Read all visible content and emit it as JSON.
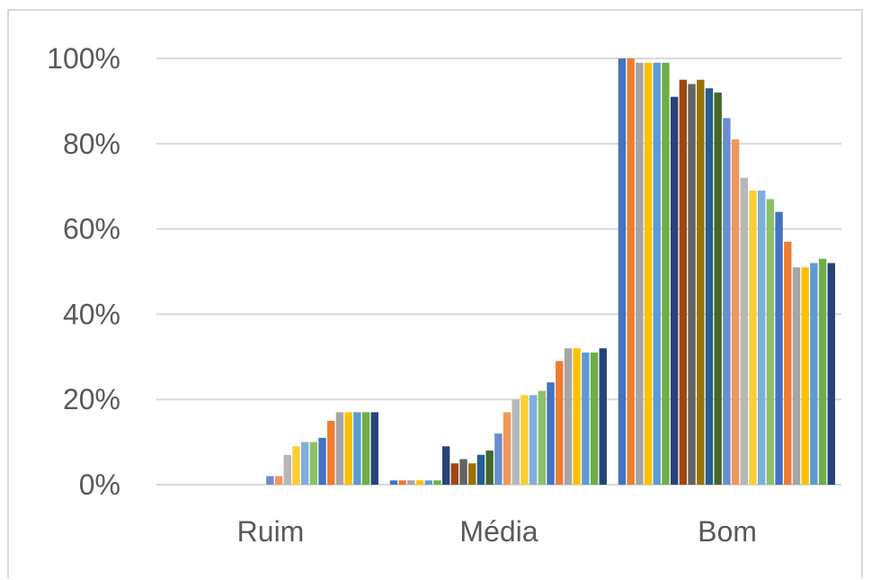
{
  "chart_data": {
    "type": "bar",
    "categories": [
      "Ruim",
      "Média",
      "Bom"
    ],
    "y_tick_labels": [
      "0%",
      "20%",
      "40%",
      "60%",
      "80%",
      "100%"
    ],
    "ylim": [
      0,
      100
    ],
    "grid": true,
    "legend": "none",
    "palette": [
      "#4472c4",
      "#ed7d31",
      "#a5a5a5",
      "#ffc000",
      "#5b9bd5",
      "#70ad47",
      "#264478",
      "#9e480e",
      "#636363",
      "#997300",
      "#255e91",
      "#43682b",
      "#698ed0",
      "#f1975a",
      "#b7b7b7",
      "#ffcd33",
      "#7cafdd",
      "#8cc168"
    ],
    "series_values": [
      [
        0,
        1,
        100
      ],
      [
        0,
        1,
        100
      ],
      [
        0,
        1,
        99
      ],
      [
        0,
        1,
        99
      ],
      [
        0,
        1,
        99
      ],
      [
        0,
        1,
        99
      ],
      [
        0,
        9,
        91
      ],
      [
        0,
        5,
        95
      ],
      [
        0,
        6,
        94
      ],
      [
        0,
        5,
        95
      ],
      [
        0,
        7,
        93
      ],
      [
        0,
        8,
        92
      ],
      [
        2,
        12,
        86
      ],
      [
        2,
        17,
        81
      ],
      [
        7,
        20,
        72
      ],
      [
        9,
        21,
        69
      ],
      [
        10,
        21,
        69
      ],
      [
        10,
        22,
        67
      ],
      [
        11,
        24,
        64
      ],
      [
        15,
        29,
        57
      ],
      [
        17,
        32,
        51
      ],
      [
        17,
        32,
        51
      ],
      [
        17,
        31,
        52
      ],
      [
        17,
        31,
        53
      ],
      [
        17,
        32,
        52
      ]
    ]
  }
}
